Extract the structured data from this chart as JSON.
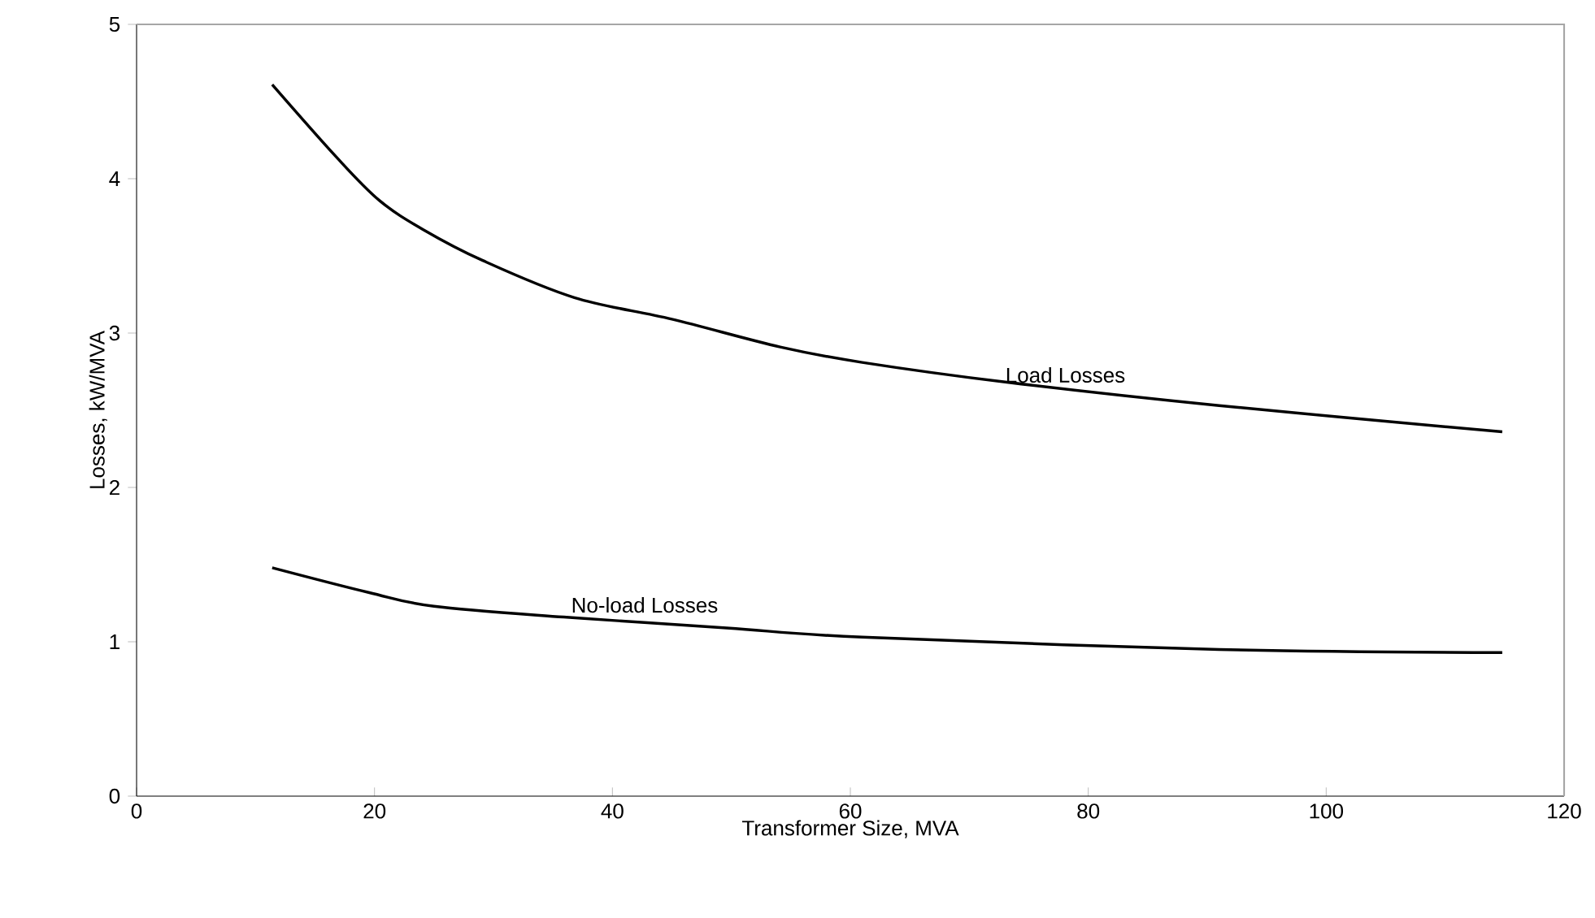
{
  "chart_data": {
    "type": "line",
    "xlabel": "Transformer Size, MVA",
    "ylabel": "Losses, kW/MVA",
    "xlim": [
      0,
      120
    ],
    "xticks": [
      0,
      20,
      40,
      60,
      80,
      100,
      120
    ],
    "ylim": [
      0,
      5
    ],
    "yticks": [
      0,
      1,
      2,
      3,
      4,
      5
    ],
    "grid": false,
    "marker": "none",
    "line_style": "solid",
    "series": [
      {
        "color": "#000000",
        "x": [
          11.4,
          16.8,
          20.4,
          24.1,
          29.1,
          36.8,
          45,
          54.1,
          61,
          73.3,
          91,
          114.8
        ],
        "values": [
          4.61,
          4.14,
          3.86,
          3.67,
          3.47,
          3.23,
          3.09,
          2.91,
          2.81,
          2.68,
          2.53,
          2.36
        ]
      },
      {
        "color": "#000000",
        "x": [
          11.4,
          19.5,
          25,
          35.9,
          49.6,
          61,
          91,
          114.8
        ],
        "values": [
          1.48,
          1.32,
          1.23,
          1.16,
          1.09,
          1.03,
          0.95,
          0.93
        ]
      }
    ],
    "annotations": [
      {
        "text": "Load Losses",
        "x": 73,
        "y": 2.68
      },
      {
        "text": "No-load Losses",
        "x": 36.5,
        "y": 1.19
      }
    ]
  }
}
